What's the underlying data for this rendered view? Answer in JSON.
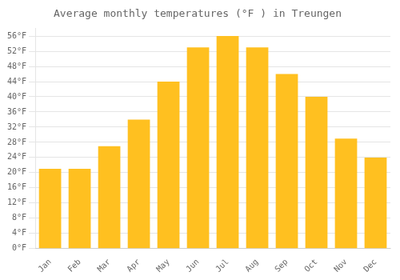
{
  "chart_data": {
    "type": "bar",
    "title": "Average monthly temperatures (°F ) in Treungen",
    "categories": [
      "Jan",
      "Feb",
      "Mar",
      "Apr",
      "May",
      "Jun",
      "Jul",
      "Aug",
      "Sep",
      "Oct",
      "Nov",
      "Dec"
    ],
    "values": [
      21,
      21,
      27,
      34,
      44,
      53,
      56,
      53,
      46,
      40,
      29,
      24
    ],
    "color": "#FFC020",
    "ylim": [
      0,
      58
    ],
    "yticks": [
      {
        "value": 0,
        "label": "0°F"
      },
      {
        "value": 4,
        "label": "4°F"
      },
      {
        "value": 8,
        "label": "8°F"
      },
      {
        "value": 12,
        "label": "12°F"
      },
      {
        "value": 16,
        "label": "16°F"
      },
      {
        "value": 20,
        "label": "20°F"
      },
      {
        "value": 24,
        "label": "24°F"
      },
      {
        "value": 28,
        "label": "28°F"
      },
      {
        "value": 32,
        "label": "32°F"
      },
      {
        "value": 36,
        "label": "36°F"
      },
      {
        "value": 40,
        "label": "40°F"
      },
      {
        "value": 44,
        "label": "44°F"
      },
      {
        "value": 48,
        "label": "48°F"
      },
      {
        "value": 52,
        "label": "52°F"
      },
      {
        "value": 56,
        "label": "56°F"
      }
    ],
    "grid": true
  }
}
